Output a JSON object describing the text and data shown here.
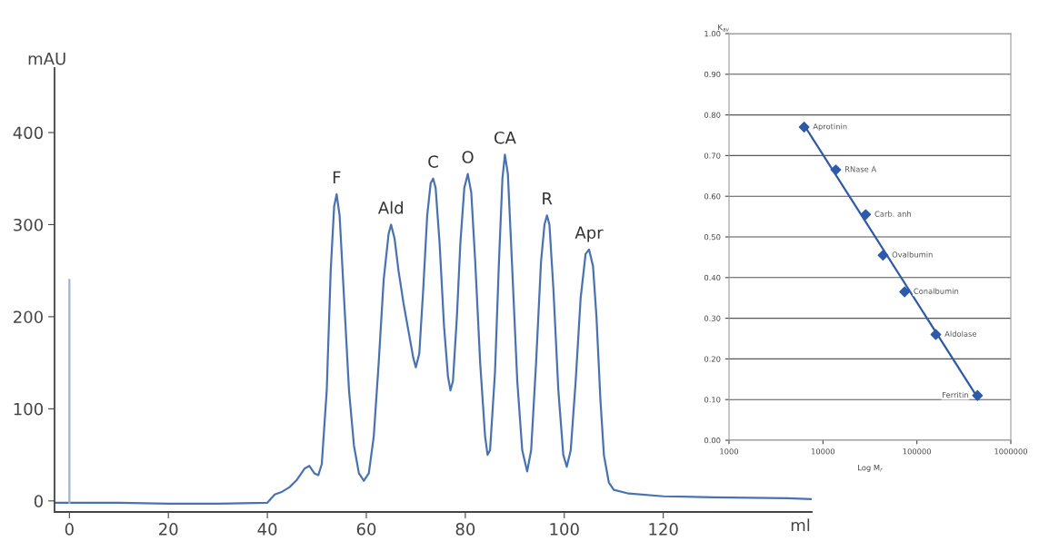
{
  "chart_data": [
    {
      "type": "line",
      "xlabel": "ml",
      "ylabel": "mAU",
      "xlim": [
        -3,
        150
      ],
      "ylim": [
        -12,
        470
      ],
      "xticks": [
        0,
        20,
        40,
        60,
        80,
        100,
        120
      ],
      "yticks": [
        0,
        100,
        200,
        300,
        400
      ],
      "grid": false,
      "legend": false,
      "marker": "none",
      "line_style": "solid",
      "series": [
        {
          "color": "#4a72b0",
          "x": [
            -3,
            10,
            20,
            30,
            40,
            41.5,
            43,
            44.5,
            46,
            47.5,
            48.5,
            49.5,
            50.3,
            51,
            52,
            52.8,
            53.5,
            54,
            54.6,
            55.5,
            56.5,
            57.5,
            58.5,
            59.5,
            60.5,
            61.5,
            62.5,
            63.5,
            64.5,
            65,
            65.7,
            66.5,
            67.5,
            68.5,
            69.5,
            70,
            70.7,
            71.5,
            72.3,
            73,
            73.5,
            74,
            74.8,
            75.7,
            76.5,
            77,
            77.5,
            78.3,
            79,
            79.8,
            80.5,
            81.2,
            82,
            83,
            84,
            84.5,
            85,
            86,
            86.8,
            87.5,
            88,
            88.6,
            89.5,
            90.5,
            91.5,
            92.5,
            93.3,
            94.3,
            95.3,
            96,
            96.5,
            97,
            97.8,
            98.8,
            99.8,
            100.5,
            101.3,
            102.3,
            103.3,
            104.3,
            105,
            105.8,
            106.5,
            107.3,
            108,
            109,
            110,
            113,
            120,
            130,
            145,
            150
          ],
          "values": [
            -2,
            -2,
            -3,
            -3,
            -2,
            7,
            10,
            15,
            23,
            35,
            38,
            30,
            28,
            40,
            120,
            250,
            320,
            333,
            310,
            220,
            120,
            60,
            30,
            22,
            30,
            70,
            150,
            240,
            290,
            300,
            285,
            250,
            215,
            185,
            155,
            145,
            160,
            230,
            310,
            345,
            350,
            340,
            280,
            190,
            135,
            120,
            130,
            200,
            280,
            340,
            355,
            335,
            260,
            150,
            70,
            50,
            55,
            140,
            260,
            350,
            376,
            355,
            250,
            130,
            55,
            32,
            55,
            150,
            260,
            300,
            310,
            300,
            230,
            120,
            50,
            37,
            55,
            130,
            220,
            268,
            273,
            255,
            200,
            110,
            50,
            20,
            12,
            8,
            5,
            4,
            3,
            2
          ]
        },
        {
          "color": "#9db3d6",
          "x": [
            0,
            0
          ],
          "values": [
            -2,
            240
          ]
        }
      ],
      "annotations": [
        {
          "text": "F",
          "x": 54,
          "y": 333
        },
        {
          "text": "Ald",
          "x": 65,
          "y": 300
        },
        {
          "text": "C",
          "x": 73.5,
          "y": 350
        },
        {
          "text": "O",
          "x": 80.5,
          "y": 355
        },
        {
          "text": "CA",
          "x": 88,
          "y": 376
        },
        {
          "text": "R",
          "x": 96.5,
          "y": 310
        },
        {
          "text": "Apr",
          "x": 105,
          "y": 273
        }
      ]
    },
    {
      "type": "scatter",
      "xlabel": "Log M$_{r}$",
      "ylabel": "K$_{av}$",
      "log": "x",
      "xlim": [
        1000,
        1000000
      ],
      "ylim": [
        0,
        1
      ],
      "xticks": [
        1000,
        10000,
        100000,
        1000000
      ],
      "yticks": [
        {
          "value": 0,
          "label": "0.00"
        },
        {
          "value": 0.1,
          "label": "0.10"
        },
        {
          "value": 0.2,
          "label": "0.20"
        },
        {
          "value": 0.3,
          "label": "0.30"
        },
        {
          "value": 0.4,
          "label": "0.40"
        },
        {
          "value": 0.5,
          "label": "0.50"
        },
        {
          "value": 0.6,
          "label": "0.60"
        },
        {
          "value": 0.7,
          "label": "0.70"
        },
        {
          "value": 0.8,
          "label": "0.80"
        },
        {
          "value": 0.9,
          "label": "0.90"
        },
        {
          "value": 1,
          "label": "1.00"
        }
      ],
      "grid": "y",
      "legend": false,
      "marker": "diamond",
      "series": [
        {
          "type": "line",
          "marker": "none",
          "color": "#2e5aa8",
          "x": [
            6300,
            442000
          ],
          "values": [
            0.775,
            0.105
          ]
        },
        {
          "type": "scatter",
          "color": "#2e5aa8",
          "x": [
            6300,
            13700,
            28500,
            43600,
            74000,
            159000,
            442000
          ],
          "values": [
            0.77,
            0.665,
            0.555,
            0.455,
            0.365,
            0.26,
            0.11
          ]
        }
      ],
      "annotations": [
        {
          "text": "Aprotinin",
          "x": 6300,
          "y": 0.77
        },
        {
          "text": "RNase A",
          "x": 13700,
          "y": 0.665
        },
        {
          "text": "Carb. anh",
          "x": 28500,
          "y": 0.555
        },
        {
          "text": "Ovalbumin",
          "x": 43600,
          "y": 0.455
        },
        {
          "text": "Conalbumin",
          "x": 74000,
          "y": 0.365
        },
        {
          "text": "Aldolase",
          "x": 159000,
          "y": 0.26
        },
        {
          "text": "Ferritin",
          "x": 442000,
          "y": 0.11
        }
      ]
    }
  ]
}
